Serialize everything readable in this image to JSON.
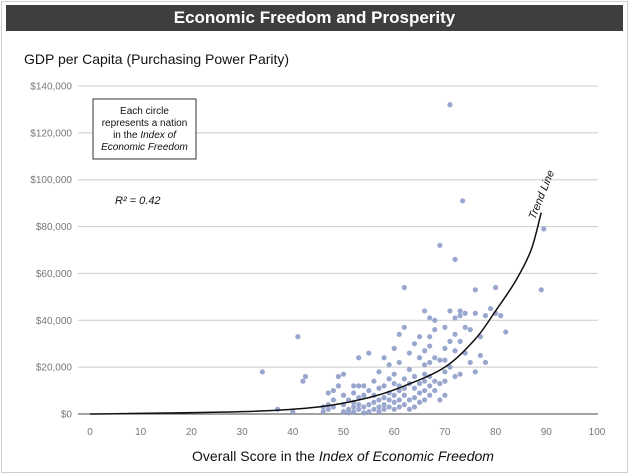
{
  "chart_data": {
    "type": "scatter",
    "title": "Economic Freedom and Prosperity",
    "ylabel": "GDP per Capita (Purchasing Power Parity)",
    "xlabel_parts": [
      "Overall Score in the ",
      "Index of Economic Freedom",
      ""
    ],
    "xlim": [
      0,
      100
    ],
    "ylim": [
      0,
      140000
    ],
    "x_ticks": [
      0,
      10,
      20,
      30,
      40,
      50,
      60,
      70,
      80,
      90,
      100
    ],
    "x_tick_labels": [
      "0",
      "10",
      "20",
      "30",
      "40",
      "50",
      "60",
      "70",
      "80",
      "90",
      "100"
    ],
    "y_ticks": [
      0,
      20000,
      40000,
      60000,
      80000,
      100000,
      120000,
      140000
    ],
    "y_tick_labels": [
      "$0",
      "$20,000",
      "$40,000",
      "$60,000",
      "$80,000",
      "$100,000",
      "$120,000",
      "$140,000"
    ],
    "grid": "horizontal",
    "note_lines": [
      [
        {
          "text": "Each circle",
          "italic": false
        }
      ],
      [
        {
          "text": "represents a nation",
          "italic": false
        }
      ],
      [
        {
          "text": "in the ",
          "italic": false
        },
        {
          "text": "Index of",
          "italic": true
        }
      ],
      [
        {
          "text": "Economic Freedom",
          "italic": true
        }
      ]
    ],
    "r2_label": "R² = 0.42",
    "trend_label": "Trend Line",
    "point_color": "#8e9cc9",
    "trend_curve": [
      [
        0,
        0
      ],
      [
        30,
        1000
      ],
      [
        45,
        3000
      ],
      [
        55,
        7000
      ],
      [
        62,
        12000
      ],
      [
        70,
        20000
      ],
      [
        76,
        32000
      ],
      [
        80,
        44000
      ],
      [
        84,
        57000
      ],
      [
        87,
        70000
      ],
      [
        89,
        86000
      ]
    ],
    "points": [
      [
        34,
        18000
      ],
      [
        37,
        2000
      ],
      [
        40,
        1000
      ],
      [
        41,
        33000
      ],
      [
        42,
        14000
      ],
      [
        42.5,
        16000
      ],
      [
        46,
        1000
      ],
      [
        46,
        3000
      ],
      [
        47,
        2000
      ],
      [
        47,
        4000
      ],
      [
        47,
        9000
      ],
      [
        48,
        3000
      ],
      [
        48,
        6000
      ],
      [
        48,
        10000
      ],
      [
        49,
        12000
      ],
      [
        49,
        16000
      ],
      [
        50,
        1000
      ],
      [
        50,
        4000
      ],
      [
        50,
        8000
      ],
      [
        50,
        17000
      ],
      [
        51,
        500
      ],
      [
        51,
        2000
      ],
      [
        51,
        6000
      ],
      [
        52,
        1000
      ],
      [
        52,
        3000
      ],
      [
        52,
        5000
      ],
      [
        52,
        9000
      ],
      [
        52,
        12000
      ],
      [
        53,
        2000
      ],
      [
        53,
        4000
      ],
      [
        53,
        7000
      ],
      [
        53,
        12000
      ],
      [
        53,
        24000
      ],
      [
        54,
        500
      ],
      [
        54,
        3000
      ],
      [
        54,
        8000
      ],
      [
        54,
        12000
      ],
      [
        55,
        1000
      ],
      [
        55,
        4000
      ],
      [
        55,
        10000
      ],
      [
        55,
        26000
      ],
      [
        56,
        2000
      ],
      [
        56,
        5000
      ],
      [
        56,
        8000
      ],
      [
        56,
        14000
      ],
      [
        57,
        1000
      ],
      [
        57,
        3000
      ],
      [
        57,
        6000
      ],
      [
        57,
        11000
      ],
      [
        57,
        18000
      ],
      [
        58,
        2000
      ],
      [
        58,
        4000
      ],
      [
        58,
        7000
      ],
      [
        58,
        12000
      ],
      [
        58,
        24000
      ],
      [
        59,
        3000
      ],
      [
        59,
        6000
      ],
      [
        59,
        9000
      ],
      [
        59,
        15000
      ],
      [
        59,
        21000
      ],
      [
        60,
        2000
      ],
      [
        60,
        5000
      ],
      [
        60,
        8000
      ],
      [
        60,
        13000
      ],
      [
        60,
        17000
      ],
      [
        60,
        28000
      ],
      [
        61,
        3000
      ],
      [
        61,
        6000
      ],
      [
        61,
        10000
      ],
      [
        61,
        12000
      ],
      [
        61,
        22000
      ],
      [
        61,
        34000
      ],
      [
        62,
        4000
      ],
      [
        62,
        8000
      ],
      [
        62,
        11000
      ],
      [
        62,
        15000
      ],
      [
        62,
        37000
      ],
      [
        62,
        54000
      ],
      [
        63,
        2000
      ],
      [
        63,
        6000
      ],
      [
        63,
        13000
      ],
      [
        63,
        19000
      ],
      [
        63,
        26000
      ],
      [
        64,
        3000
      ],
      [
        64,
        7000
      ],
      [
        64,
        11000
      ],
      [
        64,
        16000
      ],
      [
        64,
        30000
      ],
      [
        65,
        5000
      ],
      [
        65,
        9000
      ],
      [
        65,
        13000
      ],
      [
        65,
        24000
      ],
      [
        65,
        33000
      ],
      [
        66,
        6000
      ],
      [
        66,
        10000
      ],
      [
        66,
        14000
      ],
      [
        66,
        17000
      ],
      [
        66,
        21000
      ],
      [
        66,
        27000
      ],
      [
        66,
        44000
      ],
      [
        67,
        8000
      ],
      [
        67,
        12000
      ],
      [
        67,
        16000
      ],
      [
        67,
        22000
      ],
      [
        67,
        29000
      ],
      [
        67,
        33000
      ],
      [
        67,
        41000
      ],
      [
        68,
        10000
      ],
      [
        68,
        14000
      ],
      [
        68,
        24000
      ],
      [
        68,
        36000
      ],
      [
        68,
        40000
      ],
      [
        69,
        6000
      ],
      [
        69,
        13000
      ],
      [
        69,
        23000
      ],
      [
        69,
        72000
      ],
      [
        70,
        8000
      ],
      [
        70,
        14000
      ],
      [
        70,
        18000
      ],
      [
        70,
        23000
      ],
      [
        70,
        28000
      ],
      [
        70,
        37000
      ],
      [
        71,
        20000
      ],
      [
        71,
        31000
      ],
      [
        71,
        44000
      ],
      [
        71,
        132000
      ],
      [
        72,
        16000
      ],
      [
        72,
        27000
      ],
      [
        72,
        34000
      ],
      [
        72,
        41000
      ],
      [
        72,
        66000
      ],
      [
        73,
        17000
      ],
      [
        73,
        31000
      ],
      [
        73,
        42000
      ],
      [
        73,
        44000
      ],
      [
        73.5,
        91000
      ],
      [
        74,
        26000
      ],
      [
        74,
        37000
      ],
      [
        74,
        43000
      ],
      [
        75,
        22000
      ],
      [
        75,
        36000
      ],
      [
        76,
        18000
      ],
      [
        76,
        43000
      ],
      [
        76,
        53000
      ],
      [
        77,
        25000
      ],
      [
        77,
        33000
      ],
      [
        78,
        22000
      ],
      [
        78,
        42000
      ],
      [
        79,
        45000
      ],
      [
        80,
        43000
      ],
      [
        80,
        54000
      ],
      [
        81,
        42000
      ],
      [
        82,
        35000
      ],
      [
        89,
        53000
      ],
      [
        89.5,
        79000
      ]
    ]
  }
}
